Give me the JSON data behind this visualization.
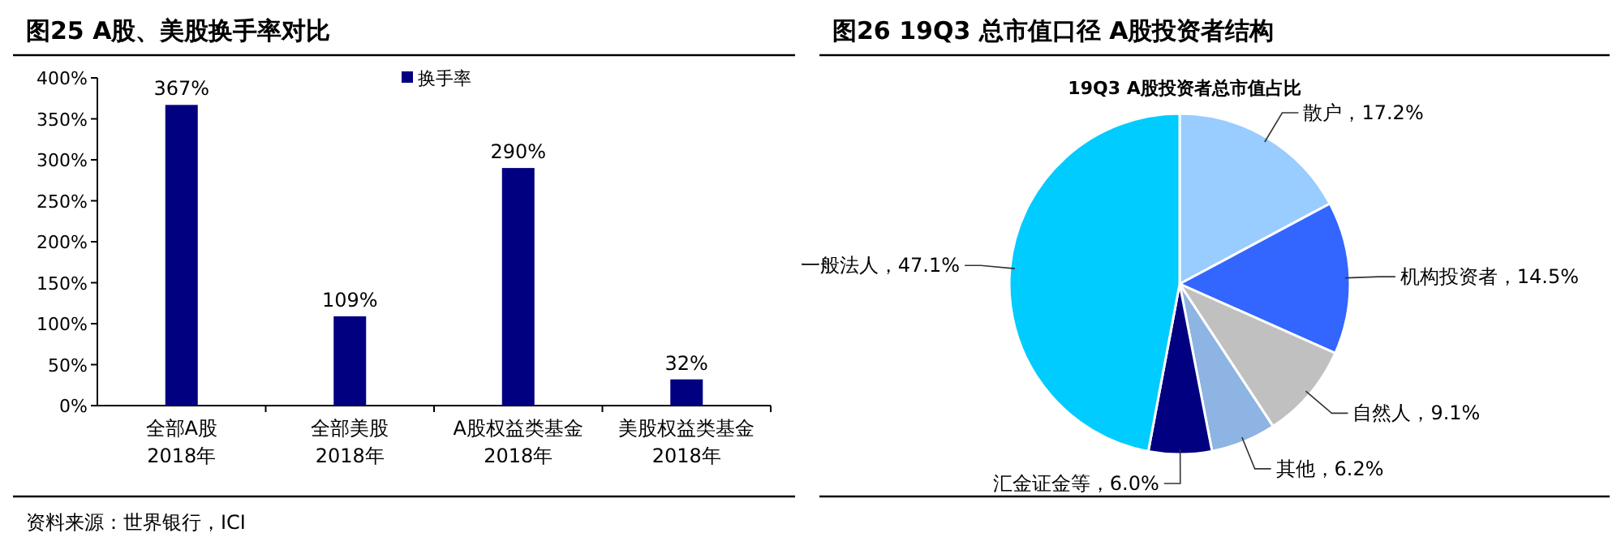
{
  "chart_data": [
    {
      "type": "bar",
      "title": "图25 A股、美股换手率对比",
      "categories": [
        "全部A股\n2018年",
        "全部美股\n2018年",
        "A股权益类基金\n2018年",
        "美股权益类基金\n2018年"
      ],
      "series": [
        {
          "name": "换手率",
          "color": "#000080",
          "values": [
            367,
            109,
            290,
            32
          ],
          "value_labels": [
            "367%",
            "109%",
            "290%",
            "32%"
          ]
        }
      ],
      "ylim": [
        0,
        400
      ],
      "yticks": [
        {
          "value": 0,
          "label": "0%"
        },
        {
          "value": 50,
          "label": "50%"
        },
        {
          "value": 100,
          "label": "100%"
        },
        {
          "value": 150,
          "label": "150%"
        },
        {
          "value": 200,
          "label": "200%"
        },
        {
          "value": 250,
          "label": "250%"
        },
        {
          "value": 300,
          "label": "300%"
        },
        {
          "value": 350,
          "label": "350%"
        },
        {
          "value": 400,
          "label": "400%"
        }
      ],
      "legend": "top",
      "grid": false,
      "annotations": [
        "资料来源：世界银行，ICI"
      ]
    },
    {
      "type": "pie",
      "title": "图26 19Q3 总市值口径 A股投资者结构",
      "subtitle": "19Q3 A股投资者总市值占比",
      "categories": [
        "散户",
        "机构投资者",
        "自然人",
        "其他",
        "汇金证金等",
        "一般法人"
      ],
      "values": [
        17.2,
        14.5,
        9.1,
        6.2,
        6.0,
        47.1
      ],
      "value_labels": [
        "17.2%",
        "14.5%",
        "9.1%",
        "6.2%",
        "6.0%",
        "47.1%"
      ],
      "colors": [
        "#99ccff",
        "#3366ff",
        "#c0c0c0",
        "#8db4e2",
        "#000080",
        "#00ccff"
      ]
    }
  ]
}
